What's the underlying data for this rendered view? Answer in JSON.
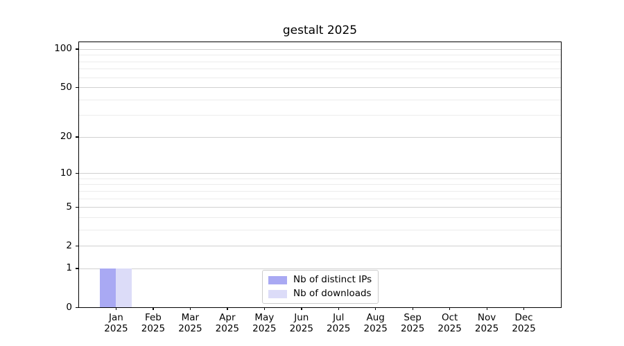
{
  "title": "gestalt 2025",
  "chart_data": {
    "type": "bar",
    "title": "gestalt 2025",
    "categories": [
      "Jan",
      "Feb",
      "Mar",
      "Apr",
      "May",
      "Jun",
      "Jul",
      "Aug",
      "Sep",
      "Oct",
      "Nov",
      "Dec"
    ],
    "category_year": "2025",
    "series": [
      {
        "name": "Nb of distinct IPs",
        "color": "#a9a9f3",
        "values": [
          1,
          0,
          0,
          0,
          0,
          0,
          0,
          0,
          0,
          0,
          0,
          0
        ]
      },
      {
        "name": "Nb of downloads",
        "color": "#dcdcf8",
        "values": [
          1,
          0,
          0,
          0,
          0,
          0,
          0,
          0,
          0,
          0,
          0,
          0
        ]
      }
    ],
    "xlabel": "",
    "ylabel": "",
    "y_axis": {
      "scale": "log1p",
      "major_ticks": [
        0,
        1,
        2,
        5,
        10,
        20,
        50,
        100
      ],
      "minor_ticks": [
        3,
        4,
        6,
        7,
        8,
        9,
        30,
        40,
        60,
        70,
        80,
        90
      ],
      "ylim": [
        0,
        113
      ]
    },
    "grid": {
      "enabled": true,
      "major_color": "#d0d0d0",
      "minor_color": "#ececec"
    },
    "legend_position": "lower center"
  },
  "legend": {
    "items": [
      {
        "label": "Nb of distinct IPs",
        "color": "#a9a9f3"
      },
      {
        "label": "Nb of downloads",
        "color": "#dcdcf8"
      }
    ]
  }
}
